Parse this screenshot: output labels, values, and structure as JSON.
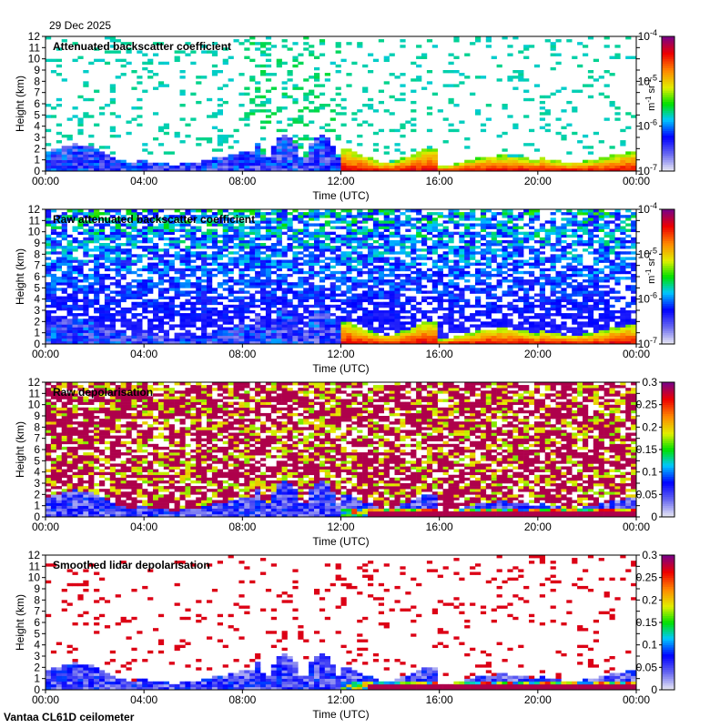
{
  "date": "29 Dec 2025",
  "footer": "Vantaa CL61D ceilometer",
  "x_tick_labels": [
    "00:00",
    "04:00",
    "08:00",
    "12:00",
    "16:00",
    "20:00",
    "00:00"
  ],
  "chart_data": [
    {
      "type": "heatmap",
      "title": "Attenuated backscatter coefficient",
      "xlabel": "Time (UTC)",
      "ylabel": "Height (km)",
      "xlim": [
        0,
        24
      ],
      "ylim": [
        0,
        12
      ],
      "yticks": [
        0,
        1,
        2,
        3,
        4,
        5,
        6,
        7,
        8,
        9,
        10,
        11,
        12
      ],
      "colorbar": {
        "scale": "log",
        "range": [
          1e-07,
          0.0001
        ],
        "tick_labels": [
          {
            "base": "10",
            "exp": "-4"
          },
          {
            "base": "10",
            "exp": "-5"
          },
          {
            "base": "10",
            "exp": "-6"
          },
          {
            "base": "10",
            "exp": "-7"
          }
        ],
        "unit": {
          "a": "m",
          "a_exp": "-1",
          "b": "sr",
          "b_exp": "-1"
        }
      }
    },
    {
      "type": "heatmap",
      "title": "Raw attenuated backscatter coefficient",
      "xlabel": "Time (UTC)",
      "ylabel": "Height (km)",
      "xlim": [
        0,
        24
      ],
      "ylim": [
        0,
        12
      ],
      "yticks": [
        0,
        1,
        2,
        3,
        4,
        5,
        6,
        7,
        8,
        9,
        10,
        11,
        12
      ],
      "colorbar": {
        "scale": "log",
        "range": [
          1e-07,
          0.0001
        ],
        "tick_labels": [
          {
            "base": "10",
            "exp": "-4"
          },
          {
            "base": "10",
            "exp": "-5"
          },
          {
            "base": "10",
            "exp": "-6"
          },
          {
            "base": "10",
            "exp": "-7"
          }
        ],
        "unit": {
          "a": "m",
          "a_exp": "-1",
          "b": "sr",
          "b_exp": "-1"
        }
      }
    },
    {
      "type": "heatmap",
      "title": "Raw depolarisation",
      "xlabel": "Time (UTC)",
      "ylabel": "Height (km)",
      "xlim": [
        0,
        24
      ],
      "ylim": [
        0,
        12
      ],
      "yticks": [
        0,
        1,
        2,
        3,
        4,
        5,
        6,
        7,
        8,
        9,
        10,
        11,
        12
      ],
      "colorbar": {
        "scale": "linear",
        "range": [
          0,
          0.3
        ],
        "tick_labels": [
          "0.3",
          "0.25",
          "0.2",
          "0.15",
          "0.1",
          "0.05",
          "0"
        ]
      }
    },
    {
      "type": "heatmap",
      "title": "Smoothed lidar depolarisation",
      "xlabel": "Time (UTC)",
      "ylabel": "Height (km)",
      "xlim": [
        0,
        24
      ],
      "ylim": [
        0,
        12
      ],
      "yticks": [
        0,
        1,
        2,
        3,
        4,
        5,
        6,
        7,
        8,
        9,
        10,
        11,
        12
      ],
      "colorbar": {
        "scale": "linear",
        "range": [
          0,
          0.3
        ],
        "tick_labels": [
          "0.3",
          "0.25",
          "0.2",
          "0.15",
          "0.1",
          "0.05",
          "0"
        ]
      }
    }
  ]
}
